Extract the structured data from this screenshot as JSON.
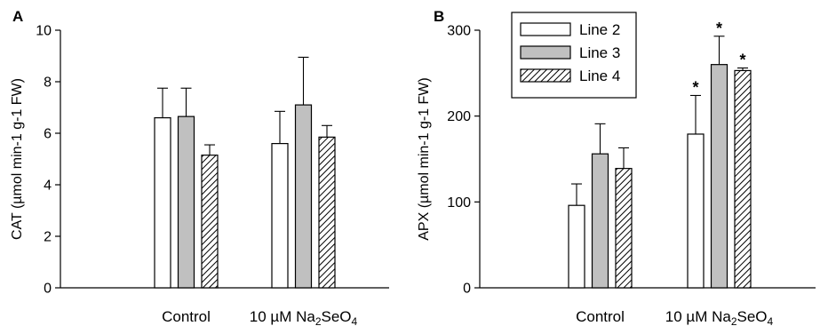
{
  "chart_data": [
    {
      "type": "bar",
      "panel_label": "A",
      "categories": [
        "Control",
        "10 µM Na₂SeO₄"
      ],
      "series": [
        {
          "name": "Line 2",
          "values": [
            6.6,
            5.6
          ],
          "errors": [
            1.15,
            1.25
          ],
          "fill": "white"
        },
        {
          "name": "Line 3",
          "values": [
            6.65,
            7.1
          ],
          "errors": [
            1.1,
            1.85
          ],
          "fill": "gray"
        },
        {
          "name": "Line 4",
          "values": [
            5.15,
            5.85
          ],
          "errors": [
            0.4,
            0.45
          ],
          "fill": "hatch"
        }
      ],
      "ylabel": "CAT (µmol min-1 g-1 FW)",
      "ylim": [
        0,
        10
      ],
      "yticks": [
        0,
        2,
        4,
        6,
        8,
        10
      ],
      "significance": [
        [
          false,
          false
        ],
        [
          false,
          false
        ],
        [
          false,
          false
        ]
      ],
      "legend": "none",
      "grid": false
    },
    {
      "type": "bar",
      "panel_label": "B",
      "categories": [
        "Control",
        "10 µM Na₂SeO₄"
      ],
      "series": [
        {
          "name": "Line 2",
          "values": [
            96,
            179
          ],
          "errors": [
            25,
            45
          ],
          "fill": "white"
        },
        {
          "name": "Line 3",
          "values": [
            156,
            260
          ],
          "errors": [
            35,
            33
          ],
          "fill": "gray"
        },
        {
          "name": "Line 4",
          "values": [
            139,
            253
          ],
          "errors": [
            24,
            3
          ],
          "fill": "hatch"
        }
      ],
      "ylabel": "APX (µmol min-1 g-1 FW)",
      "ylim": [
        0,
        300
      ],
      "yticks": [
        0,
        100,
        200,
        300
      ],
      "significance": [
        [
          false,
          true
        ],
        [
          false,
          true
        ],
        [
          false,
          true
        ]
      ],
      "significance_marker": "*",
      "legend": "top-left",
      "grid": false
    }
  ],
  "colors": {
    "white_bar": "#ffffff",
    "gray_bar": "#c0c0c0",
    "hatch_line": "#000000",
    "axis": "#000000"
  }
}
